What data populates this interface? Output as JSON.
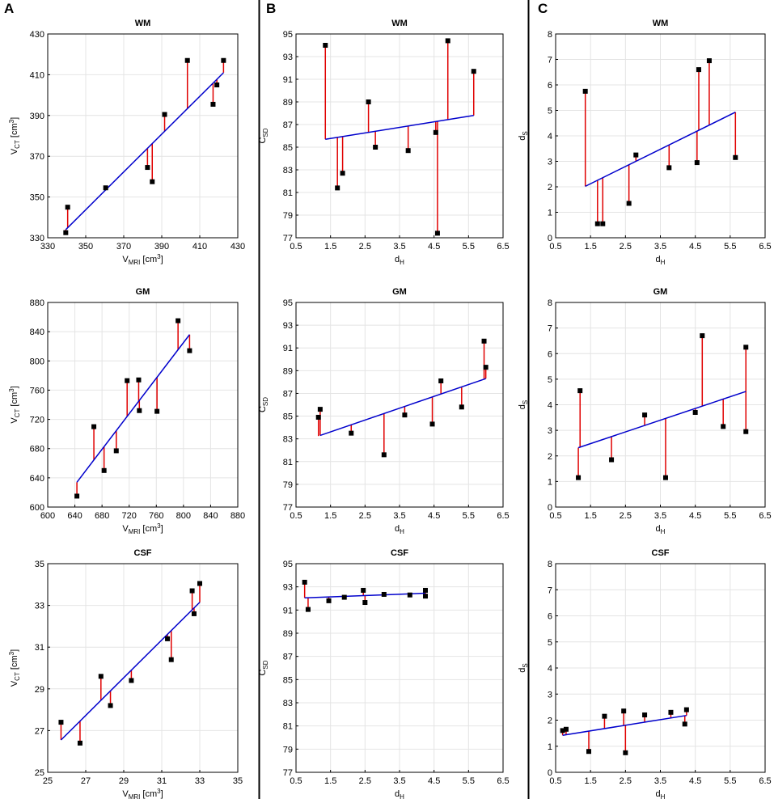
{
  "panel_letters": [
    "A",
    "B",
    "C"
  ],
  "colors": {
    "fit_line": "#0000cc",
    "residual": "#e00000",
    "point": "#000000",
    "frame": "#000000",
    "grid": "#e4e4e4",
    "divider": "#000000"
  },
  "chart_data": [
    {
      "type": "scatter",
      "column": 0,
      "row": 0,
      "title": "WM",
      "xlabel": {
        "main": "V",
        "sub": "MRI",
        "rest": " [cm",
        "sup": "3",
        "end": "]"
      },
      "ylabel": {
        "main": "V",
        "sub": "CT",
        "rest": " [cm",
        "sup": "3",
        "end": "]"
      },
      "xlim": [
        330,
        430
      ],
      "xticks": [
        330,
        350,
        370,
        390,
        410,
        430
      ],
      "ylim": [
        330,
        430
      ],
      "yticks": [
        330,
        350,
        370,
        390,
        410,
        430
      ],
      "x": [
        339.5,
        340.5,
        360.5,
        382.5,
        385,
        391.5,
        403.5,
        417,
        419,
        422.5
      ],
      "y": [
        332.5,
        345,
        354.5,
        364.5,
        357.5,
        390.5,
        417,
        395.5,
        405,
        417
      ],
      "fit": [
        [
          339.5,
          334.0
        ],
        [
          422.5,
          411.0
        ]
      ]
    },
    {
      "type": "scatter",
      "column": 1,
      "row": 0,
      "title": "WM",
      "xlabel": {
        "main": "d",
        "sub": "H"
      },
      "ylabel": {
        "main": "C",
        "sub": "SD"
      },
      "xlim": [
        0.5,
        6.5
      ],
      "xticks": [
        "0.5",
        "1.5",
        "2.5",
        "3.5",
        "4.5",
        "5.5",
        "6.5"
      ],
      "ylim": [
        77,
        95
      ],
      "yticks": [
        77,
        79,
        81,
        83,
        85,
        87,
        89,
        91,
        93,
        95
      ],
      "x": [
        1.35,
        1.7,
        1.85,
        2.6,
        2.8,
        3.75,
        4.55,
        4.6,
        4.9,
        5.65
      ],
      "y": [
        94.0,
        81.4,
        82.7,
        89.0,
        85.0,
        84.7,
        86.3,
        77.4,
        94.4,
        91.7
      ],
      "fit": [
        [
          1.35,
          85.7
        ],
        [
          5.65,
          87.8
        ]
      ]
    },
    {
      "type": "scatter",
      "column": 2,
      "row": 0,
      "title": "WM",
      "xlabel": {
        "main": "d",
        "sub": "H"
      },
      "ylabel": {
        "main": "d",
        "sub": "S"
      },
      "xlim": [
        0.5,
        6.5
      ],
      "xticks": [
        "0.5",
        "1.5",
        "2.5",
        "3.5",
        "4.5",
        "5.5",
        "6.5"
      ],
      "ylim": [
        0,
        8
      ],
      "yticks": [
        0,
        1,
        2,
        3,
        4,
        5,
        6,
        7,
        8
      ],
      "x": [
        1.35,
        1.7,
        1.85,
        2.6,
        2.8,
        3.75,
        4.55,
        4.6,
        4.9,
        5.65
      ],
      "y": [
        5.75,
        0.55,
        0.55,
        1.35,
        3.25,
        2.75,
        2.95,
        6.6,
        6.95,
        3.15
      ],
      "fit": [
        [
          1.35,
          2.02
        ],
        [
          5.65,
          4.93
        ]
      ]
    },
    {
      "type": "scatter",
      "column": 0,
      "row": 1,
      "title": "GM",
      "xlabel": {
        "main": "V",
        "sub": "MRI",
        "rest": " [cm",
        "sup": "3",
        "end": "]"
      },
      "ylabel": {
        "main": "V",
        "sub": "CT",
        "rest": " [cm",
        "sup": "3",
        "end": "]"
      },
      "xlim": [
        600,
        880
      ],
      "xticks": [
        600,
        640,
        680,
        720,
        760,
        800,
        840,
        880
      ],
      "ylim": [
        600,
        880
      ],
      "yticks": [
        600,
        640,
        680,
        720,
        760,
        800,
        840,
        880
      ],
      "x": [
        643,
        668,
        683,
        701,
        717,
        734,
        735,
        761,
        792,
        809
      ],
      "y": [
        615,
        710,
        650,
        677,
        773,
        774,
        732,
        731,
        855,
        814
      ],
      "fit": [
        [
          643,
          634.0
        ],
        [
          809,
          836.0
        ]
      ]
    },
    {
      "type": "scatter",
      "column": 1,
      "row": 1,
      "title": "GM",
      "xlabel": {
        "main": "d",
        "sub": "H"
      },
      "ylabel": {
        "main": "C",
        "sub": "SD"
      },
      "xlim": [
        0.5,
        6.5
      ],
      "xticks": [
        "0.5",
        "1.5",
        "2.5",
        "3.5",
        "4.5",
        "5.5",
        "6.5"
      ],
      "ylim": [
        77,
        95
      ],
      "yticks": [
        77,
        79,
        81,
        83,
        85,
        87,
        89,
        91,
        93,
        95
      ],
      "x": [
        1.15,
        1.2,
        2.1,
        3.05,
        3.65,
        4.45,
        4.7,
        5.3,
        5.95,
        6.0
      ],
      "y": [
        84.9,
        85.6,
        83.5,
        81.6,
        85.1,
        84.3,
        88.1,
        85.8,
        91.6,
        89.3
      ],
      "fit": [
        [
          1.2,
          83.3
        ],
        [
          6.0,
          88.3
        ]
      ]
    },
    {
      "type": "scatter",
      "column": 2,
      "row": 1,
      "title": "GM",
      "xlabel": {
        "main": "d",
        "sub": "H"
      },
      "ylabel": {
        "main": "d",
        "sub": "S"
      },
      "xlim": [
        0.5,
        6.5
      ],
      "xticks": [
        "0.5",
        "1.5",
        "2.5",
        "3.5",
        "4.5",
        "5.5",
        "6.5"
      ],
      "ylim": [
        0,
        8
      ],
      "yticks": [
        0,
        1,
        2,
        3,
        4,
        5,
        6,
        7,
        8
      ],
      "x": [
        1.15,
        1.2,
        2.1,
        3.05,
        3.65,
        4.5,
        4.7,
        5.3,
        5.95,
        5.95
      ],
      "y": [
        1.15,
        4.55,
        1.85,
        3.6,
        1.15,
        3.7,
        6.7,
        3.15,
        2.95,
        6.25
      ],
      "fit": [
        [
          1.15,
          2.32
        ],
        [
          5.95,
          4.52
        ]
      ]
    },
    {
      "type": "scatter",
      "column": 0,
      "row": 2,
      "title": "CSF",
      "xlabel": {
        "main": "V",
        "sub": "MRI",
        "rest": " [cm",
        "sup": "3",
        "end": "]"
      },
      "ylabel": {
        "main": "V",
        "sub": "CT",
        "rest": " [cm",
        "sup": "3",
        "end": "]"
      },
      "xlim": [
        25,
        35
      ],
      "xticks": [
        25,
        27,
        29,
        31,
        33,
        35
      ],
      "ylim": [
        25,
        35
      ],
      "yticks": [
        25,
        27,
        29,
        31,
        33,
        35
      ],
      "x": [
        25.7,
        26.7,
        27.8,
        28.3,
        29.4,
        31.3,
        31.5,
        32.6,
        32.7,
        33.0
      ],
      "y": [
        27.4,
        26.4,
        29.6,
        28.2,
        29.4,
        31.4,
        30.4,
        33.7,
        32.6,
        34.05
      ],
      "fit": [
        [
          25.7,
          26.55
        ],
        [
          33.0,
          33.15
        ]
      ]
    },
    {
      "type": "scatter",
      "column": 1,
      "row": 2,
      "title": "CSF",
      "xlabel": {
        "main": "d",
        "sub": "H"
      },
      "ylabel": {
        "main": "C",
        "sub": "SD"
      },
      "xlim": [
        0.5,
        6.5
      ],
      "xticks": [
        "0.5",
        "1.5",
        "2.5",
        "3.5",
        "4.5",
        "5.5",
        "6.5"
      ],
      "ylim": [
        77,
        95
      ],
      "yticks": [
        77,
        79,
        81,
        83,
        85,
        87,
        89,
        91,
        93,
        95
      ],
      "x": [
        0.75,
        0.85,
        1.45,
        1.9,
        2.45,
        2.5,
        3.05,
        3.8,
        4.25,
        4.25
      ],
      "y": [
        93.4,
        91.05,
        91.8,
        92.1,
        92.7,
        91.65,
        92.35,
        92.3,
        92.7,
        92.2
      ],
      "fit": [
        [
          0.75,
          92.05
        ],
        [
          4.25,
          92.45
        ]
      ]
    },
    {
      "type": "scatter",
      "column": 2,
      "row": 2,
      "title": "CSF",
      "xlabel": {
        "main": "d",
        "sub": "H"
      },
      "ylabel": {
        "main": "d",
        "sub": "S"
      },
      "xlim": [
        0.5,
        6.5
      ],
      "xticks": [
        "0.5",
        "1.5",
        "2.5",
        "3.5",
        "4.5",
        "5.5",
        "6.5"
      ],
      "ylim": [
        0,
        8
      ],
      "yticks": [
        0,
        1,
        2,
        3,
        4,
        5,
        6,
        7,
        8
      ],
      "x": [
        0.7,
        0.8,
        1.45,
        1.9,
        2.45,
        2.5,
        3.05,
        3.8,
        4.2,
        4.25
      ],
      "y": [
        1.6,
        1.65,
        0.8,
        2.15,
        2.35,
        0.75,
        2.2,
        2.3,
        1.85,
        2.4
      ],
      "fit": [
        [
          0.7,
          1.42
        ],
        [
          4.25,
          2.18
        ]
      ]
    }
  ]
}
